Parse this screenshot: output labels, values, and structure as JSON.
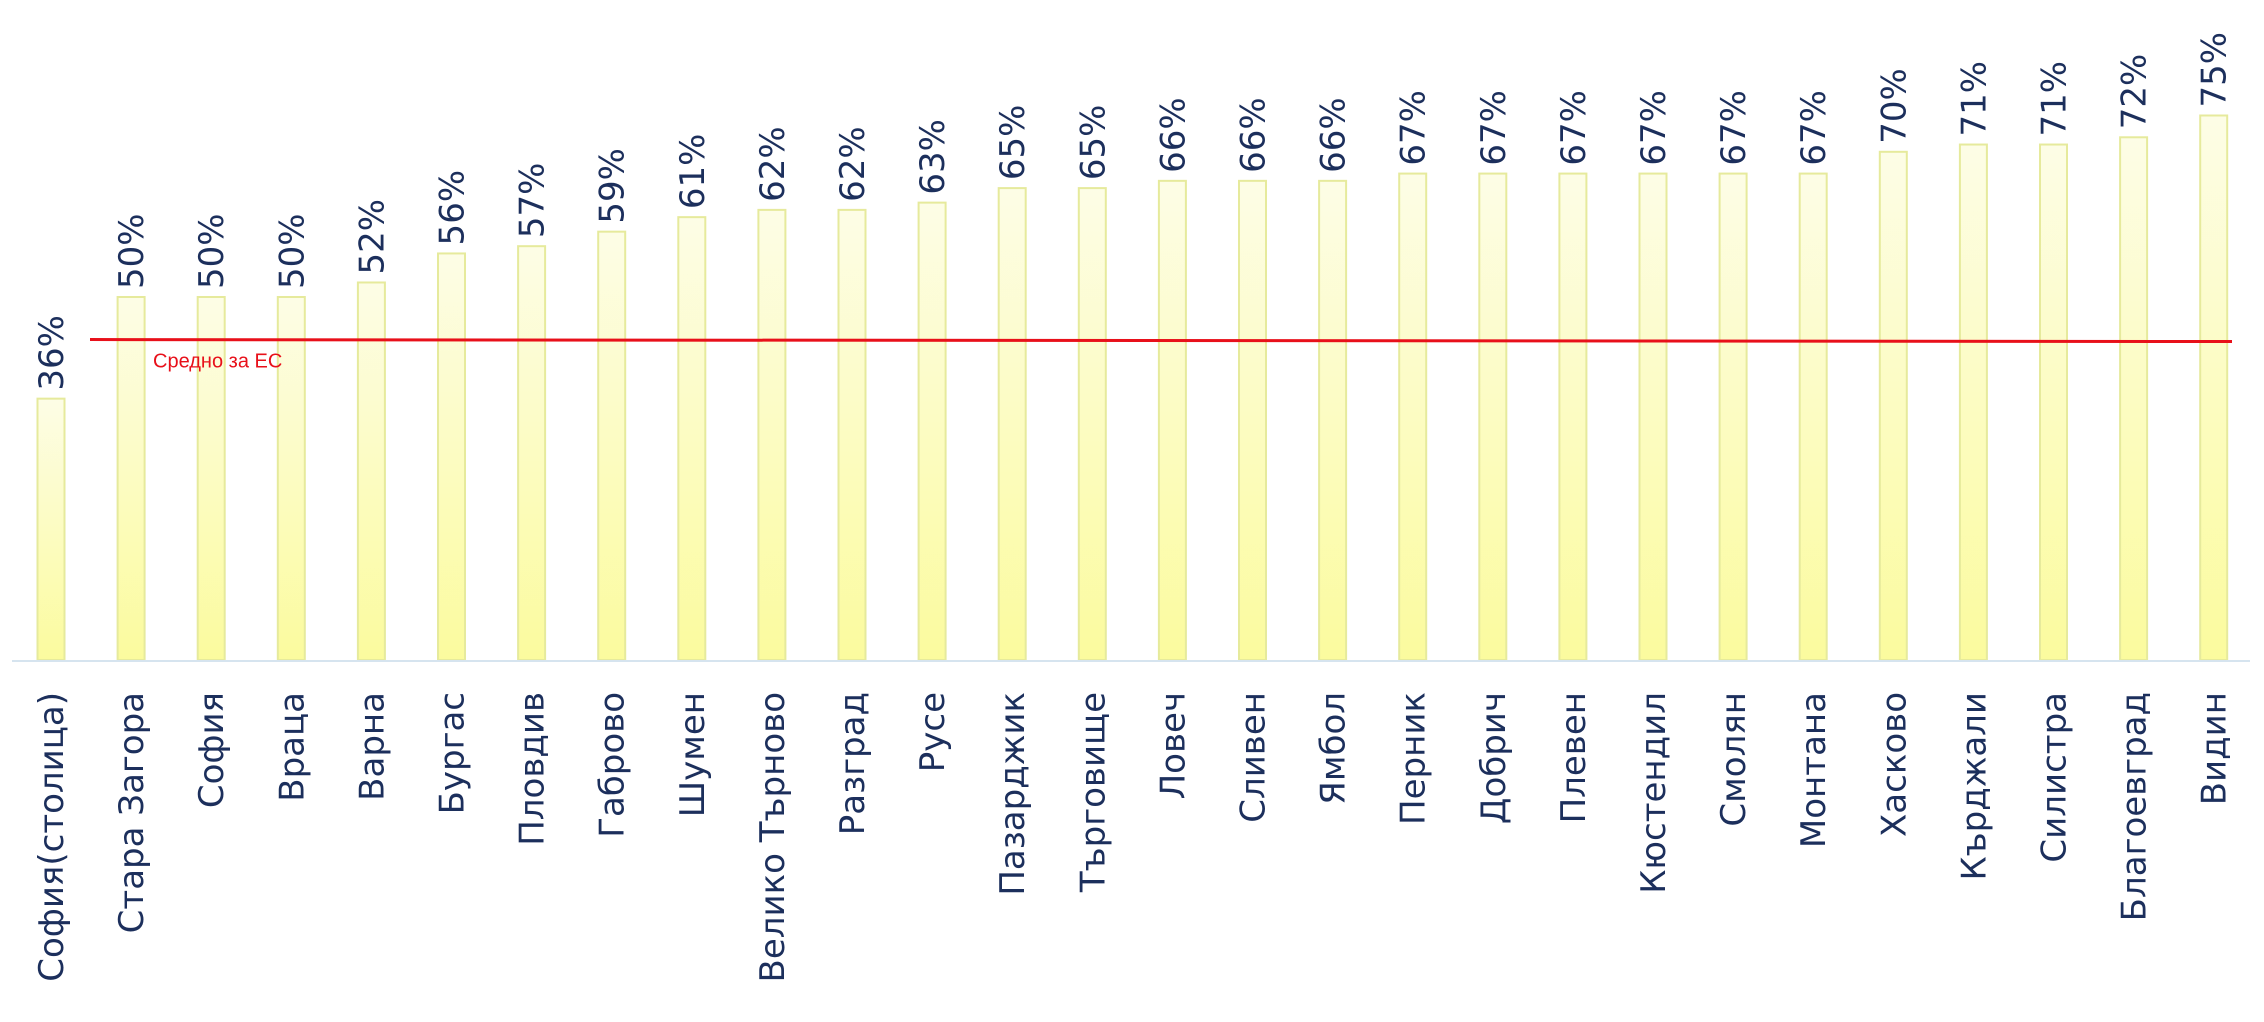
{
  "colors": {
    "bar_fill_top": "#fdfde6",
    "bar_fill_bottom": "#fbfb9e",
    "bar_stroke": "#e6ea9c",
    "label_color": "#1c2f5c",
    "avg_line": "#e8101a",
    "axis_line": "#d6e4ef"
  },
  "chart_data": {
    "type": "bar",
    "categories": [
      "София(столица)",
      "Стара Загора",
      "София",
      "Враца",
      "Варна",
      "Бургас",
      "Пловдив",
      "Габрово",
      "Шумен",
      "Велико Търново",
      "Разград",
      "Русе",
      "Пазарджик",
      "Търговище",
      "Ловеч",
      "Сливен",
      "Ямбол",
      "Перник",
      "Добрич",
      "Плевен",
      "Кюстендил",
      "Смолян",
      "Монтана",
      "Хасково",
      "Кърджали",
      "Силистра",
      "Благоевград",
      "Видин"
    ],
    "values": [
      36,
      50,
      50,
      50,
      52,
      56,
      57,
      59,
      61,
      62,
      62,
      63,
      65,
      65,
      66,
      66,
      66,
      67,
      67,
      67,
      67,
      67,
      67,
      70,
      71,
      71,
      72,
      75
    ],
    "value_labels": [
      "36%",
      "50%",
      "50%",
      "50%",
      "52%",
      "56%",
      "57%",
      "59%",
      "61%",
      "62%",
      "62%",
      "63%",
      "65%",
      "65%",
      "66%",
      "66%",
      "66%",
      "67%",
      "67%",
      "67%",
      "67%",
      "67%",
      "67%",
      "70%",
      "71%",
      "71%",
      "72%",
      "75%"
    ],
    "reference_line": {
      "label": "Средно за ЕС",
      "value": 44
    },
    "ylim": [
      0,
      75
    ],
    "grid": false,
    "title": "",
    "xlabel": "",
    "ylabel": ""
  }
}
